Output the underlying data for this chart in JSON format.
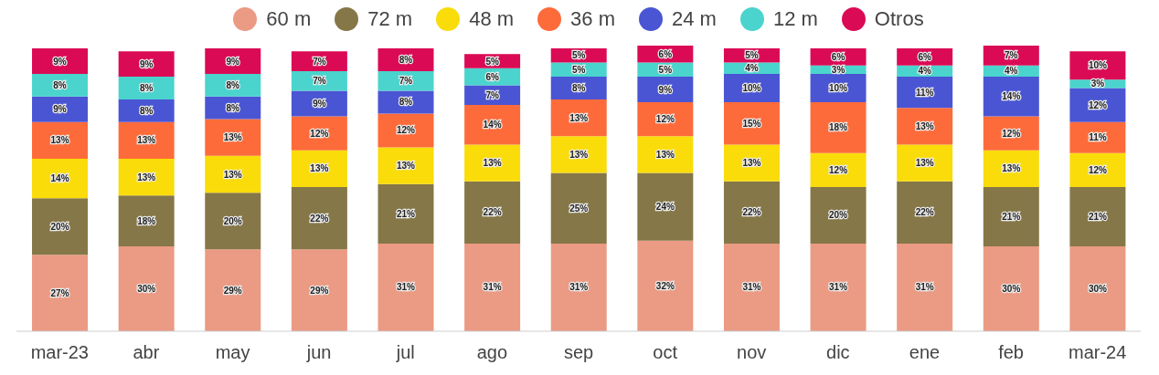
{
  "chart_data": {
    "type": "bar",
    "stacked": true,
    "legend": "top",
    "grid": false,
    "categories": [
      "mar-23",
      "abr",
      "may",
      "jun",
      "jul",
      "ago",
      "sep",
      "oct",
      "nov",
      "dic",
      "ene",
      "feb",
      "mar-24"
    ],
    "series": [
      {
        "name": "60 m",
        "color": "#eb9a83",
        "values": [
          27,
          30,
          29,
          29,
          31,
          31,
          31,
          32,
          31,
          31,
          31,
          30,
          30
        ],
        "value_labels": [
          "27%",
          "30%",
          "29%",
          "29%",
          "31%",
          "31%",
          "31%",
          "32%",
          "31%",
          "31%",
          "31%",
          "30%",
          "30%"
        ]
      },
      {
        "name": "72 m",
        "color": "#857747",
        "values": [
          20,
          18,
          20,
          22,
          21,
          22,
          25,
          24,
          22,
          20,
          22,
          21,
          21
        ],
        "value_labels": [
          "20%",
          "18%",
          "20%",
          "22%",
          "21%",
          "22%",
          "25%",
          "24%",
          "22%",
          "20%",
          "22%",
          "21%",
          "21%"
        ]
      },
      {
        "name": "48 m",
        "color": "#f9dc0a",
        "values": [
          14,
          13,
          13,
          13,
          13,
          13,
          13,
          13,
          13,
          12,
          13,
          13,
          12
        ],
        "value_labels": [
          "14%",
          "13%",
          "13%",
          "13%",
          "13%",
          "13%",
          "13%",
          "13%",
          "13%",
          "12%",
          "13%",
          "13%",
          "12%"
        ]
      },
      {
        "name": "36 m",
        "color": "#fe6b3a",
        "values": [
          13,
          13,
          13,
          12,
          12,
          14,
          13,
          12,
          15,
          18,
          13,
          12,
          11
        ],
        "value_labels": [
          "13%",
          "13%",
          "13%",
          "12%",
          "12%",
          "14%",
          "13%",
          "12%",
          "15%",
          "18%",
          "13%",
          "12%",
          "11%"
        ]
      },
      {
        "name": "24 m",
        "color": "#4a55d4",
        "values": [
          9,
          8,
          8,
          9,
          8,
          7,
          8,
          9,
          10,
          10,
          11,
          14,
          12
        ],
        "value_labels": [
          "9%",
          "8%",
          "8%",
          "9%",
          "8%",
          "7%",
          "8%",
          "9%",
          "10%",
          "10%",
          "11%",
          "14%",
          "12%"
        ]
      },
      {
        "name": "12 m",
        "color": "#4ad4cd",
        "values": [
          8,
          8,
          8,
          7,
          7,
          6,
          5,
          5,
          4,
          3,
          4,
          4,
          3
        ],
        "value_labels": [
          "8%",
          "8%",
          "8%",
          "7%",
          "7%",
          "6%",
          "5%",
          "5%",
          "4%",
          "3%",
          "4%",
          "4%",
          "3%"
        ]
      },
      {
        "name": "Otros",
        "color": "#db0a55",
        "values": [
          9,
          9,
          9,
          7,
          8,
          5,
          5,
          6,
          5,
          6,
          6,
          7,
          10
        ],
        "value_labels": [
          "9%",
          "9%",
          "9%",
          "7%",
          "8%",
          "5%",
          "5%",
          "6%",
          "5%",
          "6%",
          "6%",
          "7%",
          "10%"
        ]
      }
    ]
  }
}
